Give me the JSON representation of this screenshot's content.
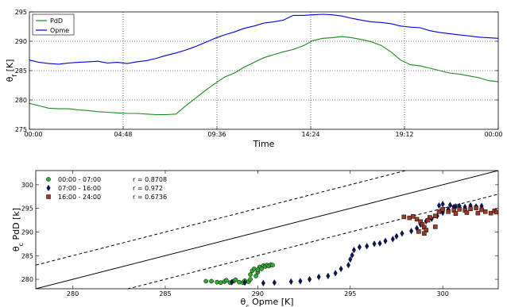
{
  "chart_data": [
    {
      "type": "line",
      "xlabel": "Time",
      "ylabel": "θ_f [K]",
      "ylim": [
        275,
        295
      ],
      "yticks": [
        275,
        280,
        285,
        290,
        295
      ],
      "x_ticks": [
        "00:00",
        "04:48",
        "09:36",
        "14:24",
        "19:12",
        "00:00"
      ],
      "grid": true,
      "legend_position": "top-left",
      "series": [
        {
          "name": "PdD",
          "color": "#1a8a1a",
          "t_hours": [
            0,
            0.5,
            1,
            1.5,
            2,
            2.5,
            3,
            3.5,
            4,
            4.5,
            5,
            5.5,
            6,
            6.5,
            7,
            7.5,
            8,
            8.5,
            9,
            9.5,
            10,
            10.5,
            11,
            11.5,
            12,
            12.5,
            13,
            13.5,
            14,
            14.5,
            15,
            15.5,
            16,
            16.5,
            17,
            17.5,
            18,
            18.5,
            19,
            19.5,
            20,
            20.5,
            21,
            21.5,
            22,
            22.5,
            23,
            23.5,
            24
          ],
          "values": [
            279.4,
            279.0,
            278.6,
            278.5,
            278.5,
            278.3,
            278.2,
            278.0,
            277.9,
            277.8,
            277.7,
            277.7,
            277.6,
            277.5,
            277.5,
            277.6,
            279.0,
            280.3,
            281.6,
            282.8,
            283.9,
            284.6,
            285.6,
            286.4,
            287.2,
            287.7,
            288.2,
            288.6,
            289.2,
            290.1,
            290.5,
            290.6,
            290.8,
            290.6,
            290.3,
            289.9,
            289.3,
            288.2,
            286.8,
            286.0,
            285.8,
            285.4,
            285.0,
            284.6,
            284.4,
            284.1,
            283.8,
            283.3,
            283.1
          ]
        },
        {
          "name": "Opme",
          "color": "#0000e0",
          "t_hours": [
            0,
            0.5,
            1,
            1.5,
            2,
            2.5,
            3,
            3.5,
            4,
            4.5,
            5,
            5.5,
            6,
            6.5,
            7,
            7.5,
            8,
            8.5,
            9,
            9.5,
            10,
            10.5,
            11,
            11.5,
            12,
            12.5,
            13,
            13.5,
            14,
            14.5,
            15,
            15.5,
            16,
            16.5,
            17,
            17.5,
            18,
            18.5,
            19,
            19.5,
            20,
            20.5,
            21,
            21.5,
            22,
            22.5,
            23,
            23.5,
            24
          ],
          "values": [
            286.8,
            286.4,
            286.2,
            286.1,
            286.3,
            286.4,
            286.5,
            286.6,
            286.3,
            286.4,
            286.2,
            286.5,
            286.7,
            287.1,
            287.6,
            288.0,
            288.5,
            289.1,
            289.8,
            290.5,
            291.1,
            291.6,
            292.2,
            292.6,
            293.1,
            293.3,
            293.6,
            294.4,
            294.4,
            294.5,
            294.6,
            294.5,
            294.3,
            293.9,
            293.6,
            293.3,
            293.2,
            293.0,
            292.6,
            292.4,
            292.3,
            291.8,
            291.5,
            291.3,
            291.1,
            290.9,
            290.7,
            290.6,
            290.5
          ]
        }
      ]
    },
    {
      "type": "scatter",
      "xlabel": "θ_c Opme [K]",
      "ylabel": "θ_c PdD [k]",
      "xlim": [
        278,
        303
      ],
      "ylim": [
        278,
        303
      ],
      "xticks": [
        280,
        285,
        290,
        295,
        300
      ],
      "yticks": [
        280,
        285,
        290,
        295,
        300
      ],
      "grid": false,
      "legend_position": "top-left",
      "reference_lines": [
        {
          "style": "solid",
          "offset": 0
        },
        {
          "style": "dashed",
          "offset": 5
        },
        {
          "style": "dashed",
          "offset": -5
        }
      ],
      "series": [
        {
          "name": "00:00 - 07:00",
          "marker": "circle",
          "color": "#33aa33",
          "r_label": "r = 0.8708",
          "r_color": "#2e9a2e",
          "points": [
            [
              287.2,
              279.6
            ],
            [
              287.5,
              279.6
            ],
            [
              287.8,
              279.4
            ],
            [
              288.0,
              279.3
            ],
            [
              288.2,
              279.5
            ],
            [
              288.3,
              279.8
            ],
            [
              288.5,
              279.3
            ],
            [
              288.7,
              279.6
            ],
            [
              288.8,
              279.9
            ],
            [
              289.0,
              279.4
            ],
            [
              289.2,
              279.3
            ],
            [
              289.3,
              279.7
            ],
            [
              289.5,
              279.5
            ],
            [
              289.6,
              280.0
            ],
            [
              289.6,
              281.0
            ],
            [
              289.7,
              281.8
            ],
            [
              289.8,
              282.2
            ],
            [
              290.0,
              281.5
            ],
            [
              290.1,
              282.6
            ],
            [
              290.2,
              282.2
            ],
            [
              290.3,
              282.9
            ],
            [
              290.4,
              282.7
            ],
            [
              290.5,
              283.0
            ],
            [
              290.6,
              282.8
            ],
            [
              290.7,
              283.1
            ],
            [
              290.8,
              283.0
            ],
            [
              289.9,
              280.7
            ],
            [
              290.0,
              282.0
            ]
          ]
        },
        {
          "name": "07:00 - 16:00",
          "marker": "diamond",
          "color": "#0a1560",
          "r_label": "r = 0.972",
          "r_color": "#1d1dcc",
          "points": [
            [
              288.6,
              279.4
            ],
            [
              289.3,
              279.3
            ],
            [
              290.3,
              279.2
            ],
            [
              290.9,
              279.3
            ],
            [
              291.8,
              279.5
            ],
            [
              292.3,
              279.6
            ],
            [
              292.8,
              280.0
            ],
            [
              293.3,
              280.5
            ],
            [
              293.8,
              280.7
            ],
            [
              294.2,
              281.3
            ],
            [
              294.5,
              282.2
            ],
            [
              294.9,
              283.0
            ],
            [
              295.0,
              284.2
            ],
            [
              295.1,
              285.1
            ],
            [
              295.2,
              286.2
            ],
            [
              295.5,
              286.8
            ],
            [
              295.9,
              287.0
            ],
            [
              296.3,
              287.5
            ],
            [
              296.6,
              287.6
            ],
            [
              296.9,
              288.1
            ],
            [
              297.3,
              288.5
            ],
            [
              297.5,
              289.1
            ],
            [
              297.8,
              289.7
            ],
            [
              298.3,
              290.2
            ],
            [
              298.6,
              290.8
            ],
            [
              298.8,
              291.6
            ],
            [
              299.1,
              292.3
            ],
            [
              299.4,
              292.8
            ],
            [
              299.7,
              293.4
            ],
            [
              300.0,
              294.1
            ],
            [
              300.3,
              294.8
            ],
            [
              300.6,
              295.3
            ],
            [
              300.9,
              295.5
            ],
            [
              301.2,
              295.3
            ],
            [
              301.5,
              295.6
            ],
            [
              301.8,
              295.4
            ],
            [
              302.1,
              295.5
            ],
            [
              299.8,
              295.6
            ],
            [
              300.0,
              295.9
            ],
            [
              300.4,
              295.7
            ],
            [
              300.7,
              295.4
            ]
          ]
        },
        {
          "name": "16:00 - 24:00",
          "marker": "square",
          "color": "#a03828",
          "r_label": "r = 0.6736",
          "r_color": "#e02020",
          "points": [
            [
              297.9,
              293.2
            ],
            [
              298.2,
              293.0
            ],
            [
              298.4,
              293.3
            ],
            [
              298.6,
              292.7
            ],
            [
              298.8,
              292.2
            ],
            [
              298.9,
              291.6
            ],
            [
              299.0,
              291.0
            ],
            [
              299.1,
              290.4
            ],
            [
              298.7,
              290.1
            ],
            [
              299.0,
              289.7
            ],
            [
              299.3,
              293.1
            ],
            [
              299.6,
              293.4
            ],
            [
              299.8,
              294.3
            ],
            [
              300.0,
              294.8
            ],
            [
              300.3,
              294.3
            ],
            [
              300.6,
              294.6
            ],
            [
              300.9,
              294.8
            ],
            [
              301.2,
              294.6
            ],
            [
              301.5,
              294.9
            ],
            [
              301.8,
              295.1
            ],
            [
              302.1,
              294.7
            ],
            [
              302.3,
              294.3
            ],
            [
              302.6,
              294.0
            ],
            [
              302.8,
              294.5
            ],
            [
              302.9,
              294.2
            ],
            [
              301.9,
              294.0
            ],
            [
              301.3,
              294.1
            ],
            [
              300.7,
              293.9
            ],
            [
              299.6,
              291.1
            ],
            [
              299.2,
              292.5
            ]
          ]
        }
      ]
    }
  ]
}
